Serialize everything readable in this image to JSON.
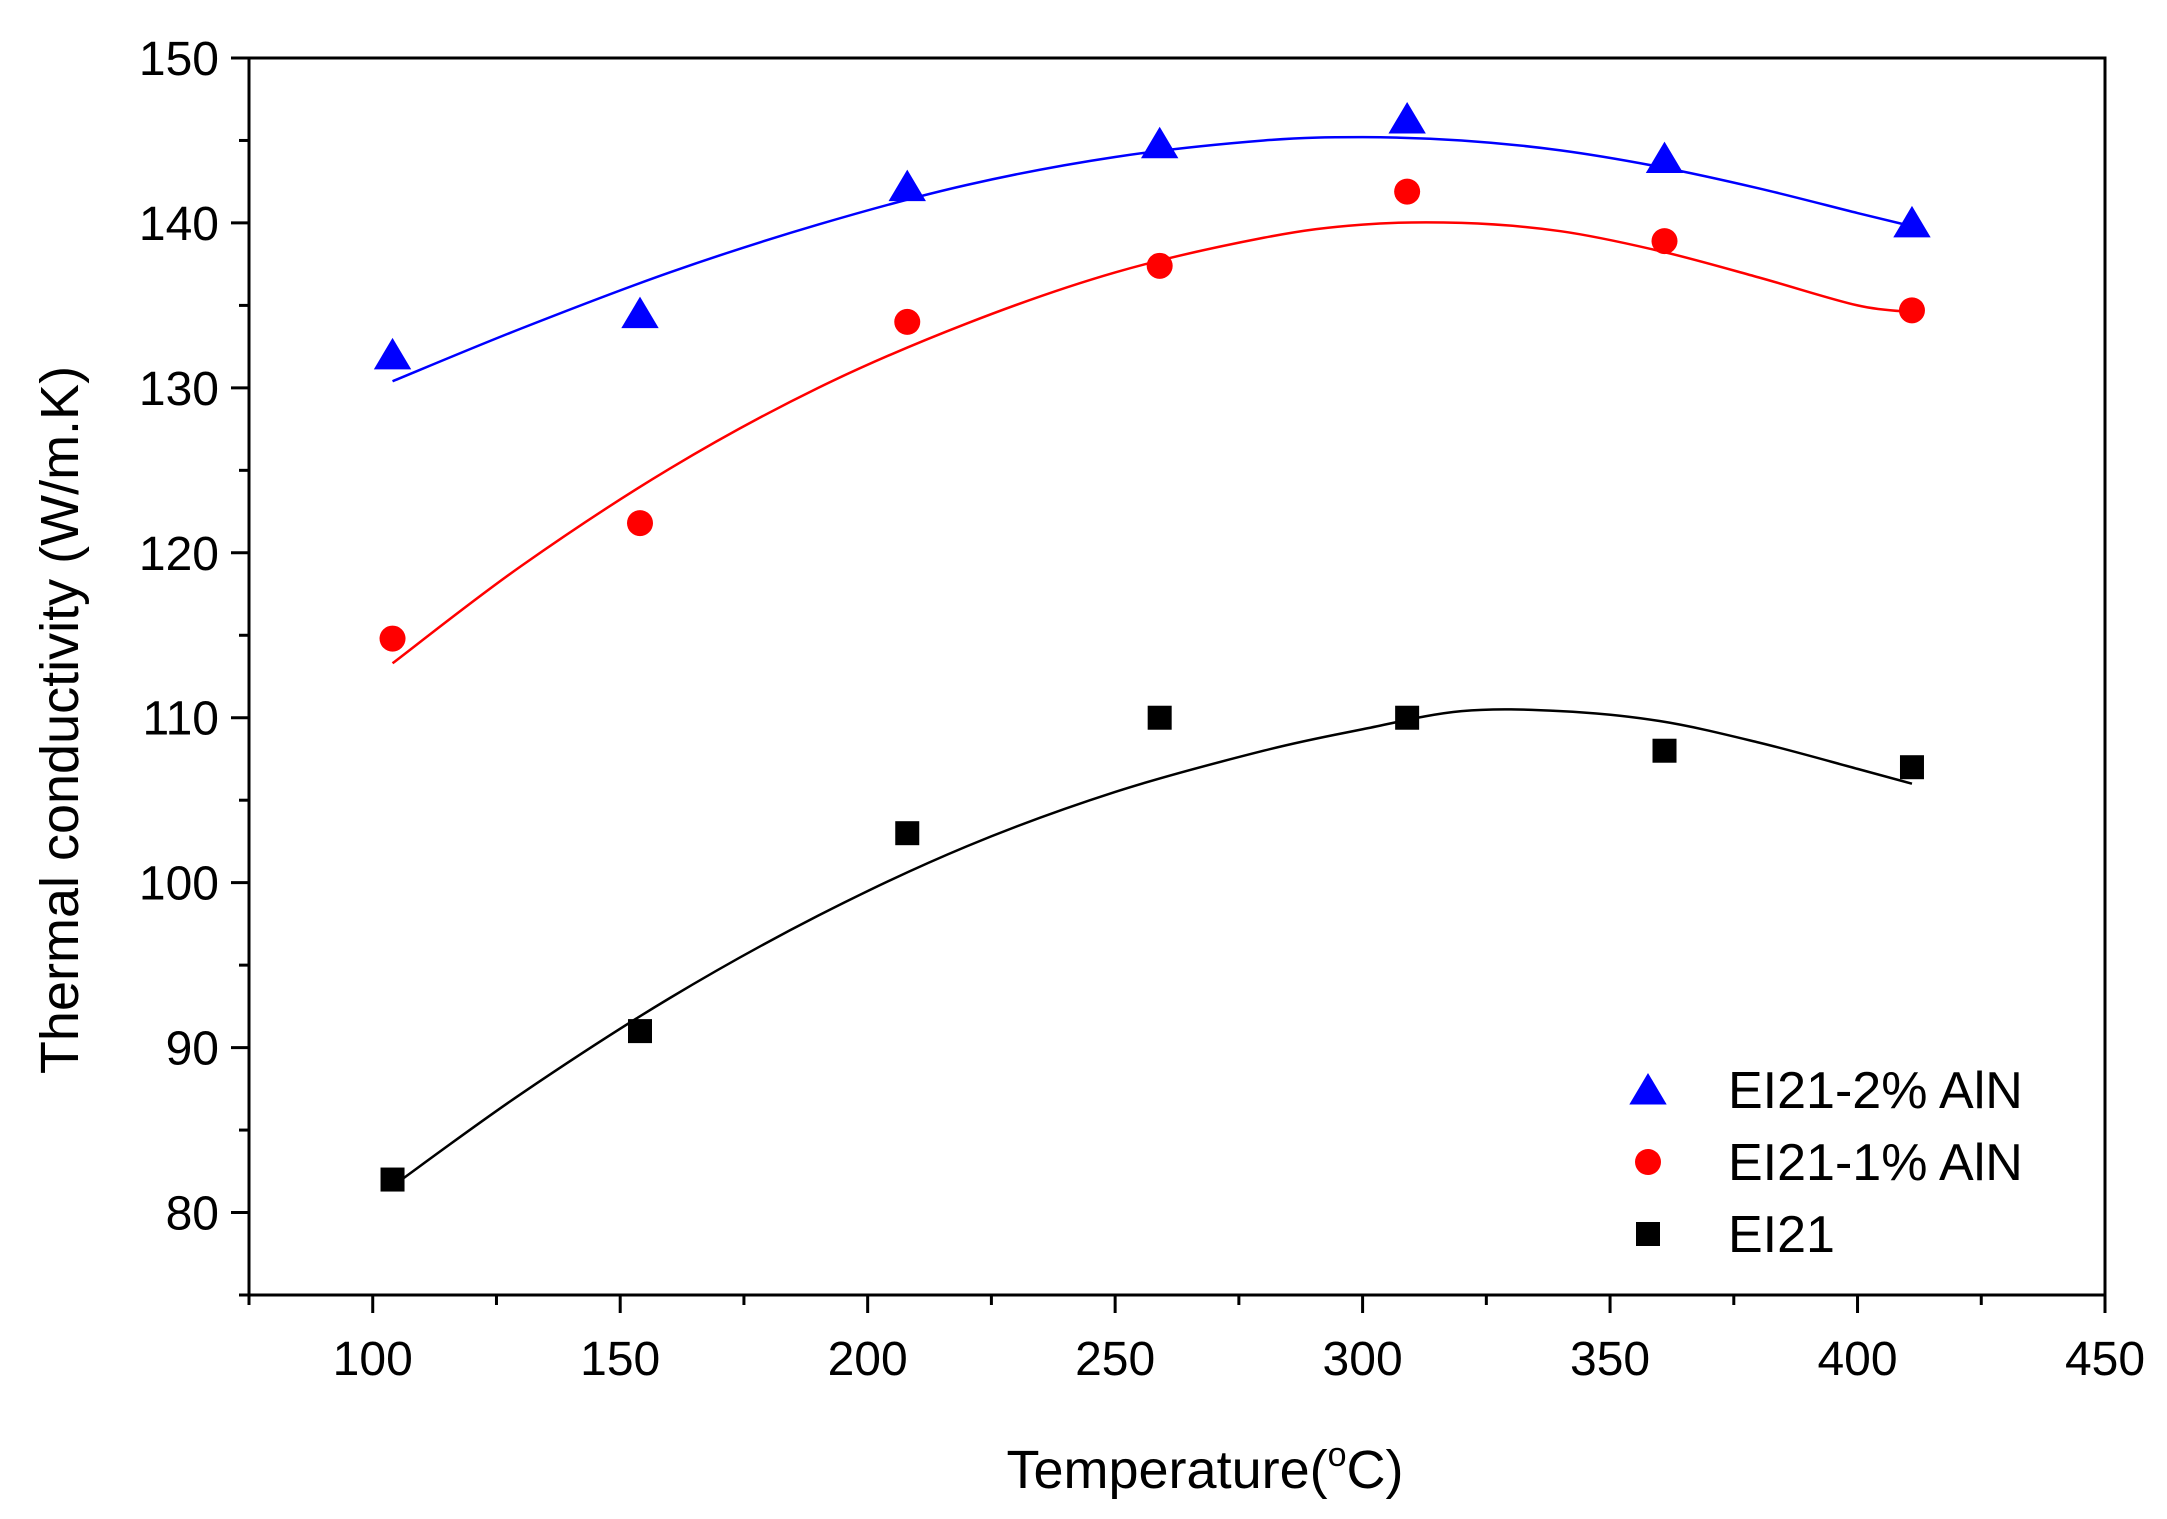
{
  "chart_data": {
    "type": "scatter",
    "title": "",
    "xlabel": "Temperature(",
    "xlabel_sup": "o",
    "xlabel_end": "C)",
    "ylabel": "Thermal conductivity (W/m.K)",
    "xlim": [
      75,
      450
    ],
    "ylim": [
      75,
      150
    ],
    "xticks": [
      100,
      150,
      200,
      250,
      300,
      350,
      400,
      450
    ],
    "yticks": [
      80,
      90,
      100,
      110,
      120,
      130,
      140,
      150
    ],
    "grid": false,
    "legend_position": "bottom-right",
    "series": [
      {
        "name": "EI21-2% AlN",
        "marker": "triangle",
        "color": "#0000ff",
        "x": [
          104,
          154,
          208,
          259,
          309,
          361,
          411
        ],
        "y": [
          132,
          134.5,
          142.2,
          144.8,
          146.3,
          143.9,
          140
        ],
        "fit_x": [
          104,
          130,
          160,
          190,
          220,
          250,
          280,
          300,
          320,
          340,
          360,
          380,
          400,
          411
        ],
        "fit_y": [
          130.4,
          133.6,
          137.0,
          139.9,
          142.3,
          144.0,
          145.0,
          145.2,
          145.0,
          144.4,
          143.4,
          142.1,
          140.6,
          139.8
        ]
      },
      {
        "name": "EI21-1% AlN",
        "marker": "circle",
        "color": "#ff0000",
        "x": [
          104,
          154,
          208,
          259,
          309,
          361,
          411
        ],
        "y": [
          114.8,
          121.8,
          134,
          137.4,
          141.9,
          138.9,
          134.7
        ],
        "fit_x": [
          104,
          130,
          160,
          190,
          220,
          250,
          280,
          300,
          320,
          340,
          360,
          380,
          400,
          411
        ],
        "fit_y": [
          113.3,
          119.2,
          125.1,
          130.0,
          133.9,
          137.0,
          139.1,
          139.9,
          140.0,
          139.5,
          138.3,
          136.7,
          135.0,
          134.6
        ]
      },
      {
        "name": "EI21",
        "marker": "square",
        "color": "#000000",
        "x": [
          104,
          154,
          208,
          259,
          309,
          361,
          411
        ],
        "y": [
          82,
          91,
          103,
          110,
          110,
          108,
          107
        ],
        "fit_x": [
          104,
          130,
          160,
          190,
          220,
          250,
          280,
          300,
          320,
          340,
          360,
          380,
          400,
          411
        ],
        "fit_y": [
          81.6,
          87.2,
          93.0,
          98.0,
          102.2,
          105.5,
          108.0,
          109.3,
          110.4,
          110.4,
          109.8,
          108.5,
          106.9,
          106.0
        ]
      }
    ]
  }
}
